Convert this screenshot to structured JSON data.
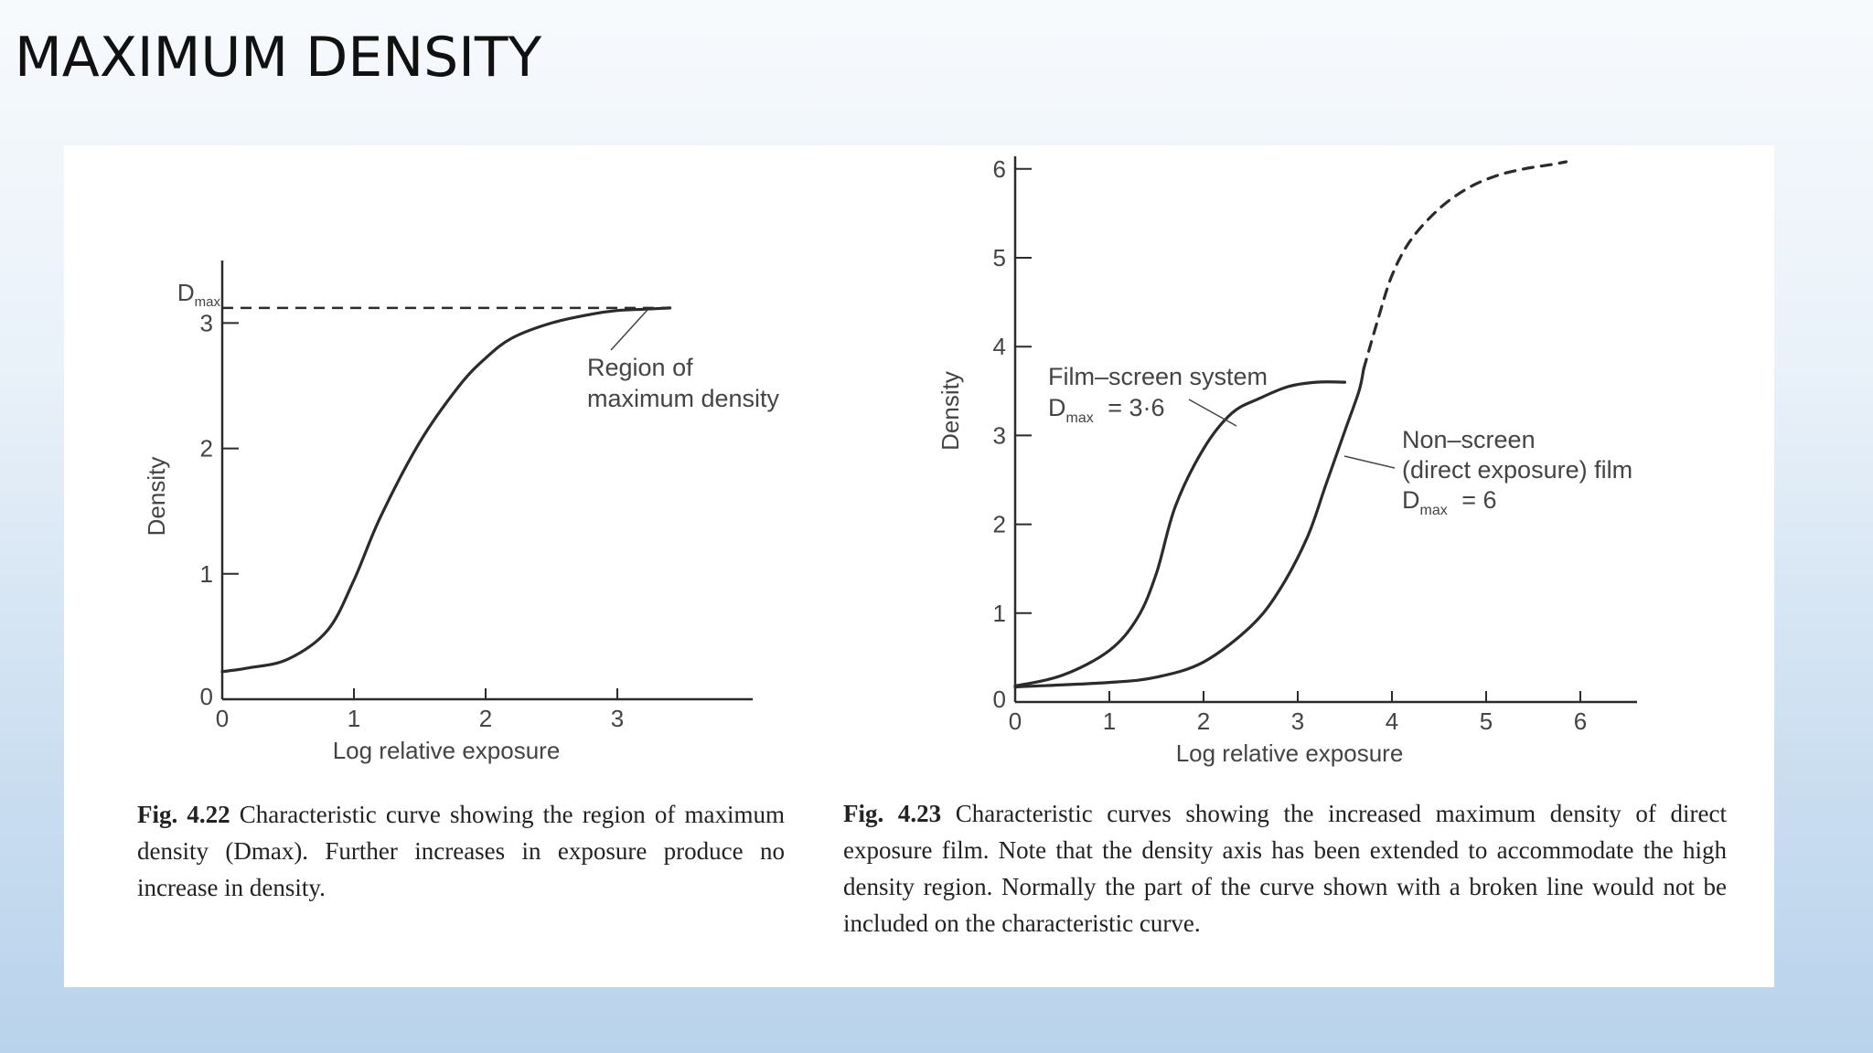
{
  "slide": {
    "title": "MAXIMUM DENSITY"
  },
  "chart_data": [
    {
      "type": "line",
      "xlabel": "Log relative exposure",
      "ylabel": "Density",
      "xlim": [
        0,
        4
      ],
      "ylim": [
        0,
        3.3
      ],
      "x_ticks": [
        "0",
        "1",
        "2",
        "3"
      ],
      "y_ticks": [
        "0",
        "1",
        "2",
        "3"
      ],
      "ref_label": "D",
      "ref_label_sub": "max",
      "ref_value": 3.12,
      "series": [
        {
          "style": "solid",
          "x": [
            0,
            0.2,
            0.5,
            0.8,
            1.0,
            1.2,
            1.5,
            1.8,
            2.0,
            2.2,
            2.5,
            2.8,
            3.0,
            3.2,
            3.4
          ],
          "y": [
            0.22,
            0.25,
            0.32,
            0.55,
            0.95,
            1.45,
            2.05,
            2.5,
            2.72,
            2.88,
            3.0,
            3.07,
            3.1,
            3.11,
            3.12
          ]
        }
      ],
      "annotations": [
        {
          "text": [
            "Region of",
            "maximum density"
          ],
          "x": 3.4,
          "y": 3.12
        }
      ],
      "caption": {
        "label": "Fig. 4.22",
        "text": "Characteristic curve showing the region of maximum density (Dmax). Further increases in exposure produce no increase in density."
      }
    },
    {
      "type": "line",
      "xlabel": "Log relative exposure",
      "ylabel": "Density",
      "xlim": [
        0,
        6.6
      ],
      "ylim": [
        0,
        6.3
      ],
      "x_ticks": [
        "0",
        "1",
        "2",
        "3",
        "4",
        "5",
        "6"
      ],
      "y_ticks": [
        "0",
        "1",
        "2",
        "3",
        "4",
        "5",
        "6"
      ],
      "series": [
        {
          "style": "solid",
          "x": [
            0,
            0.5,
            1.0,
            1.3,
            1.5,
            1.7,
            2.0,
            2.3,
            2.6,
            2.9,
            3.2,
            3.5
          ],
          "y": [
            0.18,
            0.3,
            0.58,
            0.95,
            1.45,
            2.2,
            2.85,
            3.25,
            3.42,
            3.55,
            3.6,
            3.6
          ]
        },
        {
          "style": "solid",
          "x": [
            0,
            1.0,
            1.5,
            2.0,
            2.5,
            2.8,
            3.1,
            3.3,
            3.5,
            3.65,
            3.7
          ],
          "y": [
            0.17,
            0.22,
            0.28,
            0.45,
            0.85,
            1.25,
            1.85,
            2.45,
            3.05,
            3.5,
            3.75
          ]
        },
        {
          "style": "dashed",
          "x": [
            3.7,
            3.85,
            4.0,
            4.2,
            4.5,
            4.8,
            5.1,
            5.4,
            5.7,
            5.85
          ],
          "y": [
            3.75,
            4.3,
            4.8,
            5.2,
            5.55,
            5.78,
            5.92,
            6.0,
            6.05,
            6.08
          ]
        }
      ],
      "annotations": [
        {
          "text": [
            "Film–screen system"
          ],
          "sub_label": "max",
          "sub_value": "= 3·6",
          "x": 3.0,
          "y": 3.25
        },
        {
          "text": [
            "Non–screen",
            "(direct exposure) film"
          ],
          "sub_label": "max",
          "sub_value": "= 6",
          "x": 3.55,
          "y": 2.75
        }
      ],
      "caption": {
        "label": "Fig. 4.23",
        "text": "Characteristic curves showing the increased maximum density of direct exposure film. Note that the density axis has been extended to accommodate the high density region. Normally the part of the curve shown with a broken line would not be included on the characteristic curve."
      }
    }
  ]
}
